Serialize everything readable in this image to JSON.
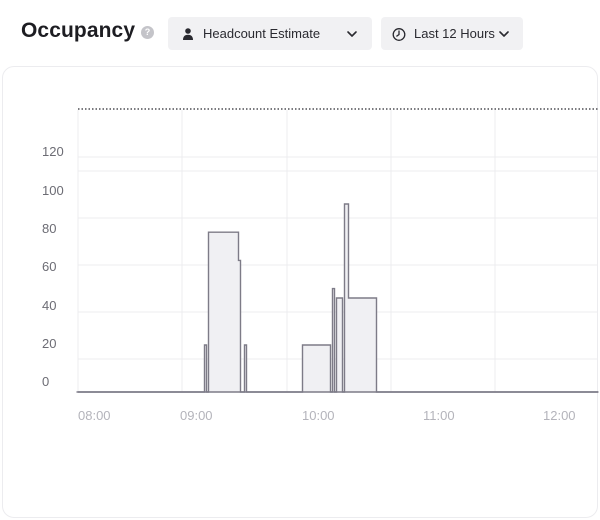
{
  "header": {
    "title": "Occupancy",
    "help_icon": "help-circle-icon",
    "metric_dropdown": {
      "icon": "person-icon",
      "label": "Headcount Estimate"
    },
    "range_dropdown": {
      "icon": "clock-icon",
      "label": "Last 12 Hours"
    }
  },
  "colors": {
    "series_stroke": "#7d7b87",
    "series_fill": "#f0f0f3",
    "grid": "#ececef",
    "reference_line": "#2a2a30"
  },
  "chart_data": {
    "type": "area",
    "step": true,
    "x_ticks": [
      "08:00",
      "09:00",
      "10:00",
      "11:00",
      "12:00"
    ],
    "y_ticks": [
      "0",
      "20",
      "40",
      "60",
      "80",
      "100",
      "120"
    ],
    "ylim": [
      0,
      120
    ],
    "grid": true,
    "reference_line": "dotted line above the 120 tick",
    "series": [
      {
        "x": [
          "07:59",
          "09:03",
          "09:04",
          "09:05",
          "09:20",
          "09:21",
          "09:23",
          "09:24",
          "09:39",
          "09:52",
          "10:06",
          "10:07",
          "10:08",
          "10:09",
          "10:12",
          "10:13",
          "10:15",
          "10:29",
          "12:20"
        ],
        "values": [
          0,
          20,
          0,
          68,
          56,
          0,
          20,
          0,
          0,
          20,
          0,
          44,
          0,
          40,
          0,
          80,
          40,
          0,
          0
        ]
      }
    ]
  }
}
